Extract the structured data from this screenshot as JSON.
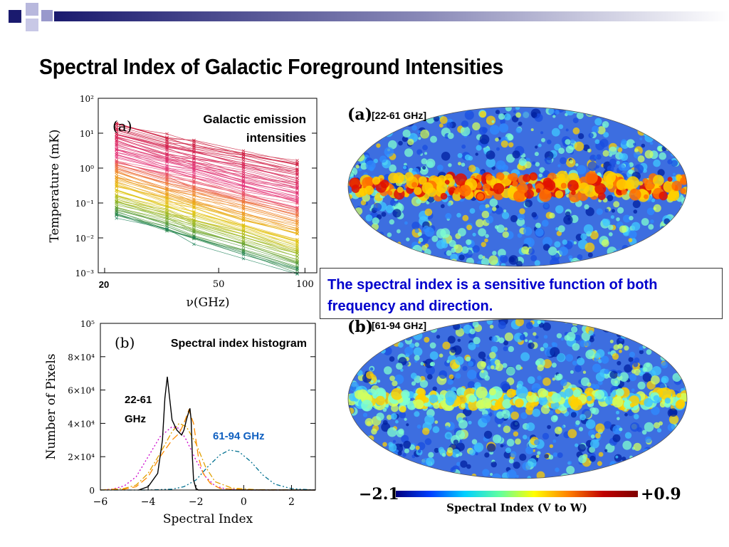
{
  "slide": {
    "title": "Spectral Index of Galactic Foreground Intensities",
    "callout": "The spectral index is a sensitive function of both frequency and direction."
  },
  "colors": {
    "header_navy": "#1a1a6e",
    "header_lavender": "#9999cc",
    "callout_text": "#0000cc",
    "annotation_blue": "#1060c0",
    "colorbar": [
      "#00007f",
      "#0040ff",
      "#00d0ff",
      "#60ffa0",
      "#ffff00",
      "#ff8000",
      "#c00000",
      "#7f0000"
    ]
  },
  "chart_data": [
    {
      "type": "line",
      "panel": "(a)",
      "title": "Galactic emission intensities",
      "xlabel": "ν(GHz)",
      "ylabel": "Temperature (mK)",
      "x_ticks": [
        "20",
        "50",
        "100"
      ],
      "y_ticks": [
        "10²",
        "10¹",
        "10⁰",
        "10⁻¹",
        "10⁻²",
        "10⁻³"
      ],
      "xscale": "log",
      "yscale": "log",
      "x": [
        22,
        33,
        41,
        61,
        94
      ],
      "ylim": [
        0.001,
        100
      ],
      "line_count": 110,
      "top_line": [
        20,
        8,
        6,
        3,
        1.5
      ],
      "bottom_line": [
        0.04,
        0.015,
        0.008,
        0.003,
        0.001
      ]
    },
    {
      "type": "line",
      "panel": "(b)",
      "title": "Spectral index histogram",
      "xlabel": "Spectral Index",
      "ylabel": "Number of Pixels",
      "x_ticks": [
        "−6",
        "−4",
        "−2",
        "0",
        "2"
      ],
      "y_ticks": [
        "0",
        "2×10⁴",
        "4×10⁴",
        "6×10⁴",
        "8×10⁴",
        "10⁵"
      ],
      "xlim": [
        -6,
        3
      ],
      "ylim": [
        0,
        100000
      ],
      "annotations": [
        "22-61 GHz",
        "61-94 GHz"
      ],
      "series": [
        {
          "color": "#000000",
          "style": "solid",
          "peak_x": -3.2,
          "peak_y": 68000,
          "x": [
            -4.4,
            -4.0,
            -3.6,
            -3.4,
            -3.3,
            -3.2,
            -3.1,
            -3.0,
            -2.8,
            -2.6,
            -2.5,
            -2.4,
            -2.3,
            -2.25,
            -2.2,
            -2.15,
            -2.1,
            -2.0,
            -1.9,
            3
          ],
          "y": [
            0,
            2000,
            10000,
            30000,
            55000,
            68000,
            55000,
            42000,
            36000,
            33000,
            36000,
            42000,
            47000,
            49000,
            42000,
            20000,
            6000,
            1000,
            0,
            0
          ]
        },
        {
          "color": "#ff8c00",
          "style": "dashed",
          "peak_x": -2.3,
          "peak_y": 48000,
          "x": [
            -6,
            -5,
            -4.5,
            -4,
            -3.5,
            -3,
            -2.7,
            -2.5,
            -2.3,
            -2.1,
            -1.9,
            -1.7,
            -1.4,
            -1,
            0,
            1,
            3
          ],
          "y": [
            0,
            500,
            2000,
            8000,
            20000,
            30000,
            34000,
            40000,
            48000,
            40000,
            20000,
            10000,
            4000,
            1000,
            200,
            0,
            0
          ]
        },
        {
          "color": "#e0a000",
          "style": "dash-dot",
          "peak_x": -2.7,
          "peak_y": 40000,
          "x": [
            -6,
            -5,
            -4.5,
            -4,
            -3.5,
            -3,
            -2.7,
            -2.4,
            -2,
            -1.6,
            -1.2,
            -0.5,
            0.5,
            3
          ],
          "y": [
            0,
            1000,
            3000,
            10000,
            22000,
            35000,
            40000,
            38000,
            28000,
            14000,
            5000,
            1200,
            200,
            0
          ]
        },
        {
          "color": "#cc00cc",
          "style": "dotted",
          "peak_x": -3.0,
          "peak_y": 38000,
          "x": [
            -6,
            -5.5,
            -5,
            -4.5,
            -4,
            -3.5,
            -3,
            -2.7,
            -2.4,
            -2,
            -1.6,
            -1.2,
            -0.8,
            0,
            3
          ],
          "y": [
            0,
            500,
            2500,
            8000,
            20000,
            32000,
            38000,
            37000,
            30000,
            18000,
            8000,
            2500,
            800,
            0,
            0
          ]
        },
        {
          "color": "#007090",
          "style": "dash-dot-dot",
          "peak_x": -0.6,
          "peak_y": 24000,
          "x": [
            -6,
            -4,
            -3,
            -2.5,
            -2,
            -1.5,
            -1,
            -0.6,
            -0.2,
            0.3,
            0.8,
            1.3,
            2,
            3
          ],
          "y": [
            0,
            0,
            500,
            2000,
            6000,
            14000,
            21000,
            24000,
            23000,
            17000,
            9000,
            3500,
            800,
            0
          ]
        }
      ]
    },
    {
      "type": "heatmap",
      "panel": "(a)",
      "title": "[22-61 GHz]",
      "projection": "mollweide"
    },
    {
      "type": "heatmap",
      "panel": "(b)",
      "title": "[61-94 GHz]",
      "projection": "mollweide",
      "colorbar": {
        "min_label": "−2.1",
        "max_label": "+0.9",
        "label": "Spectral Index (V to W)",
        "vmin": -2.1,
        "vmax": 0.9
      }
    }
  ],
  "labels": {
    "a_panel": "(a)",
    "b_panel": "(b)",
    "a_title": "Galactic emission",
    "a_title2": "intensities",
    "a_extra_tick": "20",
    "b_title": "Spectral index histogram",
    "ann_2261_1": "22-61",
    "ann_2261_2": "GHz",
    "ann_6194": "61-94 GHz",
    "map_a_panel": "(a)",
    "map_a_title": "[22-61 GHz]",
    "map_b_panel": "(b)",
    "map_b_title": "[61-94 GHz]",
    "cbar_min": "−2.1",
    "cbar_max": "+0.9",
    "cbar_label": "Spectral Index (V to W)",
    "xlab_a": "ν(GHz)",
    "ylab_a": "Temperature (mK)",
    "xlab_b": "Spectral Index",
    "ylab_b": "Number of Pixels"
  }
}
